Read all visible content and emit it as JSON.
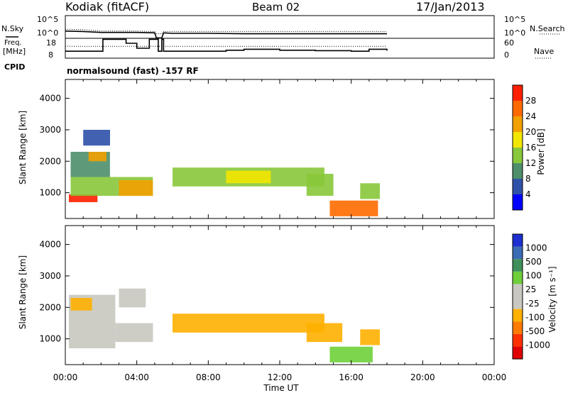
{
  "header": {
    "station": "Kodiak (fitACF)",
    "beam": "Beam 02",
    "date": "17/Jan/2013"
  },
  "labels": {
    "nsky": "N.Sky",
    "nsearch": "N.Search",
    "freq_line1": "Freq.",
    "freq_line2": "[MHz]",
    "nave": "Nave",
    "cpid": "CPID",
    "cpid_value": "normalsound (fast) -157 RF",
    "nsky_ticks": [
      "10^5",
      "10^0"
    ],
    "nsearch_ticks": [
      "10^5",
      "10^0"
    ],
    "freq_ticks": [
      "18",
      "8"
    ],
    "nave_ticks": [
      "60",
      "0"
    ]
  },
  "colors": {
    "power": [
      "#0000ff",
      "#2e51a8",
      "#4d8f6a",
      "#88c83a",
      "#f2e600",
      "#f2a000",
      "#ff6a00",
      "#ff1f00"
    ],
    "velocity": [
      "#1d2fd0",
      "#3a6bb4",
      "#3f8f5a",
      "#6fcf3a",
      "#c8c8c0",
      "#c8c8c0",
      "#ffb000",
      "#ff7a00",
      "#ff3000",
      "#e00000"
    ]
  },
  "chart_data": [
    {
      "type": "line",
      "title": "N.Sky / N.Search",
      "x": [
        0,
        1,
        2,
        3,
        4,
        5,
        5.1,
        5.4,
        5.5,
        6,
        8,
        10,
        12,
        14,
        16,
        18
      ],
      "series": [
        {
          "name": "N.Sky",
          "values": [
            1.6,
            1.5,
            1.3,
            1.3,
            1.3,
            1.2,
            0.1,
            0.1,
            1.2,
            1.1,
            1.1,
            1.0,
            1.0,
            1.0,
            1.0,
            1.0
          ]
        },
        {
          "name": "N.Search",
          "values": [
            2.0,
            1.9,
            1.6,
            1.6,
            1.6,
            1.5,
            1.0,
            1.0,
            1.5,
            1.5,
            1.5,
            1.5,
            1.5,
            1.5,
            1.5,
            1.5
          ]
        }
      ],
      "xlim": [
        0,
        24
      ],
      "ylim": [
        0,
        5
      ]
    },
    {
      "type": "line",
      "title": "Freq / Nave",
      "x": [
        0,
        2,
        2.1,
        3.3,
        3.4,
        4,
        4.6,
        4.7,
        5.1,
        5.2,
        5.4,
        5.5,
        7,
        9,
        10,
        12,
        14,
        16,
        17,
        18
      ],
      "series": [
        {
          "name": "Freq.",
          "values": [
            11.5,
            11.5,
            17.5,
            17.5,
            15.5,
            13,
            13,
            17.5,
            17.5,
            11.5,
            17.5,
            11.5,
            11.5,
            12,
            12.5,
            12,
            11.8,
            11.5,
            12.5,
            11.8
          ]
        },
        {
          "name": "Nave",
          "values": [
            14,
            14,
            14,
            14,
            14,
            14,
            14,
            14,
            14,
            14,
            14,
            14,
            14,
            14,
            14,
            14,
            14,
            14,
            14,
            14
          ]
        }
      ],
      "xlim": [
        0,
        24
      ],
      "ylim": [
        8,
        18
      ]
    },
    {
      "type": "heatmap",
      "title": "Power",
      "xlabel": "",
      "ylabel": "Slant Range [km]",
      "xlim": [
        0,
        24
      ],
      "ylim": [
        180,
        4600
      ],
      "yticks": [
        1000,
        2000,
        3000,
        4000
      ],
      "colorbar": {
        "label": "Power [dB]",
        "ticks": [
          4,
          8,
          12,
          16,
          20,
          24,
          28
        ]
      },
      "regions": [
        {
          "x0": 0.2,
          "x1": 1.8,
          "y0": 700,
          "y1": 950,
          "value": 28
        },
        {
          "x0": 0.3,
          "x1": 4.9,
          "y0": 900,
          "y1": 1500,
          "value": 14
        },
        {
          "x0": 0.3,
          "x1": 2.5,
          "y0": 1500,
          "y1": 2300,
          "value": 10
        },
        {
          "x0": 1.3,
          "x1": 2.3,
          "y0": 2000,
          "y1": 2300,
          "value": 22
        },
        {
          "x0": 3.0,
          "x1": 4.9,
          "y0": 900,
          "y1": 1400,
          "value": 22
        },
        {
          "x0": 6.0,
          "x1": 14.5,
          "y0": 1200,
          "y1": 1800,
          "value": 13
        },
        {
          "x0": 9.0,
          "x1": 11.5,
          "y0": 1300,
          "y1": 1700,
          "value": 18
        },
        {
          "x0": 13.5,
          "x1": 15.0,
          "y0": 900,
          "y1": 1600,
          "value": 13
        },
        {
          "x0": 14.8,
          "x1": 17.5,
          "y0": 250,
          "y1": 750,
          "value": 24
        },
        {
          "x0": 16.5,
          "x1": 17.6,
          "y0": 800,
          "y1": 1300,
          "value": 12
        },
        {
          "x0": 1.0,
          "x1": 2.5,
          "y0": 2500,
          "y1": 3000,
          "value": 6
        }
      ]
    },
    {
      "type": "heatmap",
      "title": "Velocity",
      "xlabel": "Time UT",
      "ylabel": "Slant Range [km]",
      "xlim": [
        0,
        24
      ],
      "ylim": [
        180,
        4600
      ],
      "yticks": [
        1000,
        2000,
        3000,
        4000
      ],
      "xticks": [
        "00:00",
        "04:00",
        "08:00",
        "12:00",
        "16:00",
        "20:00",
        "00:00"
      ],
      "colorbar": {
        "label": "Velocity [m s⁻¹]",
        "ticks": [
          1000,
          500,
          100,
          25,
          -25,
          -100,
          -500,
          -1000
        ]
      },
      "regions": [
        {
          "x0": 0.2,
          "x1": 2.8,
          "y0": 700,
          "y1": 2400,
          "value": 0
        },
        {
          "x0": 2.8,
          "x1": 4.9,
          "y0": 900,
          "y1": 1500,
          "value": -100
        },
        {
          "x0": 0.3,
          "x1": 1.5,
          "y0": 1900,
          "y1": 2300,
          "value": -200
        },
        {
          "x0": 6.0,
          "x1": 14.5,
          "y0": 1200,
          "y1": 1800,
          "value": -150
        },
        {
          "x0": 13.5,
          "x1": 15.5,
          "y0": 900,
          "y1": 1500,
          "value": -150
        },
        {
          "x0": 14.8,
          "x1": 17.2,
          "y0": 250,
          "y1": 750,
          "value": 60
        },
        {
          "x0": 16.5,
          "x1": 17.6,
          "y0": 800,
          "y1": 1300,
          "value": -200
        },
        {
          "x0": 3.0,
          "x1": 4.5,
          "y0": 2000,
          "y1": 2600,
          "value": 0
        }
      ]
    }
  ]
}
